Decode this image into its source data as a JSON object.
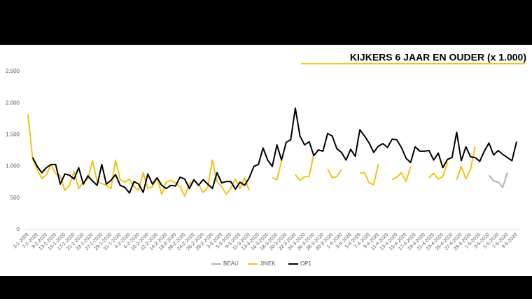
{
  "chart_data": {
    "type": "line",
    "title": "KIJKERS 6 JAAR EN OUDER  (x 1.000)",
    "categories": [
      "3-1-2020",
      null,
      "7-1-2020",
      null,
      "9-1-2020",
      null,
      "13-1-2020",
      null,
      "15-1-2020",
      null,
      "17-1-2020",
      null,
      "21-1-2020",
      null,
      "23-1-2020",
      null,
      "27-1-2020",
      null,
      "29-1-2020",
      null,
      "31-1-2020",
      null,
      "4-2-2020",
      null,
      "6-2-2020",
      null,
      "10-2-2020",
      null,
      "12-2-2020",
      null,
      "14-2-2020",
      null,
      "18-2-2020",
      null,
      "20-2-2020",
      null,
      "24-2-2020",
      null,
      "26-2-2020",
      null,
      "28-2-2020",
      null,
      "3-3-2020",
      null,
      "5-3-2020",
      null,
      "9-3-2020",
      null,
      "11-3-2020",
      null,
      "13-3-2020",
      null,
      "16-3-2020",
      null,
      "18-3-2020",
      null,
      "20-3-2020",
      null,
      "22-3-2020",
      null,
      "24-3-2020",
      null,
      "26-3-2020",
      null,
      "28-3-2020",
      null,
      "30-3-2020",
      null,
      "1-4-2020",
      null,
      "3-4-2020",
      null,
      "5-4-2020",
      null,
      "7-4-2020",
      null,
      "9-4-2020",
      null,
      "11-4-2020",
      null,
      "13-4-2020",
      null,
      "15-4-2020",
      null,
      "17-4-2020",
      null,
      "19-4-2020",
      null,
      "21-4-2020",
      null,
      "23-4-2020",
      null,
      "25-4-2020",
      null,
      "27-4-2020",
      null,
      "29-4-2020",
      null,
      "1-5-2020",
      null,
      "3-5-2020",
      null,
      "5-5-2020",
      null,
      "7-5-2020",
      null,
      "9-5-2020"
    ],
    "series": [
      {
        "name": "BEAU",
        "color": "#b0b0b0",
        "values": [
          null,
          null,
          null,
          null,
          null,
          null,
          null,
          null,
          null,
          null,
          null,
          null,
          null,
          null,
          null,
          null,
          null,
          null,
          null,
          null,
          null,
          null,
          null,
          null,
          null,
          null,
          null,
          null,
          null,
          null,
          null,
          null,
          null,
          null,
          null,
          null,
          null,
          null,
          null,
          null,
          null,
          null,
          null,
          null,
          null,
          null,
          null,
          null,
          null,
          null,
          null,
          null,
          null,
          null,
          null,
          null,
          null,
          null,
          null,
          null,
          null,
          null,
          null,
          null,
          null,
          null,
          null,
          null,
          null,
          null,
          null,
          null,
          null,
          null,
          null,
          null,
          null,
          null,
          null,
          null,
          null,
          null,
          null,
          null,
          null,
          null,
          null,
          null,
          null,
          null,
          null,
          null,
          null,
          null,
          null,
          null,
          null,
          null,
          null,
          null,
          860,
          770,
          750,
          670,
          900,
          null,
          null
        ]
      },
      {
        "name": "JINEK",
        "color": "#f2c314",
        "values": [
          1820,
          1120,
          950,
          810,
          870,
          1030,
          880,
          850,
          620,
          700,
          920,
          650,
          750,
          800,
          1090,
          760,
          730,
          700,
          650,
          1100,
          790,
          750,
          800,
          680,
          620,
          900,
          650,
          680,
          820,
          560,
          750,
          780,
          740,
          680,
          530,
          720,
          780,
          720,
          590,
          670,
          1100,
          760,
          680,
          560,
          650,
          800,
          650,
          820,
          620,
          null,
          null,
          null,
          null,
          820,
          790,
          1090,
          null,
          null,
          870,
          780,
          840,
          840,
          1200,
          null,
          null,
          960,
          820,
          840,
          950,
          null,
          null,
          null,
          890,
          900,
          740,
          710,
          1040,
          null,
          null,
          790,
          830,
          900,
          760,
          1000,
          null,
          null,
          null,
          820,
          890,
          800,
          840,
          1060,
          null,
          790,
          1000,
          800,
          950,
          1310,
          null,
          null,
          null,
          null,
          null,
          null,
          null,
          null,
          null
        ]
      },
      {
        "name": "OP1",
        "color": "#000000",
        "values": [
          null,
          1140,
          1000,
          900,
          980,
          1030,
          1030,
          720,
          880,
          860,
          800,
          980,
          720,
          850,
          770,
          700,
          1030,
          720,
          780,
          870,
          700,
          670,
          580,
          760,
          720,
          590,
          880,
          720,
          820,
          700,
          650,
          700,
          690,
          830,
          800,
          650,
          790,
          700,
          790,
          720,
          650,
          900,
          740,
          760,
          760,
          640,
          750,
          700,
          820,
          1000,
          1030,
          1290,
          1100,
          1000,
          1340,
          1100,
          1380,
          1420,
          1920,
          1480,
          1340,
          1390,
          1170,
          1260,
          1240,
          1520,
          1480,
          1280,
          1220,
          1100,
          1270,
          1160,
          1580,
          1480,
          1370,
          1220,
          1320,
          1360,
          1300,
          1430,
          1420,
          1300,
          1130,
          1060,
          1310,
          1240,
          1240,
          1250,
          1100,
          1210,
          980,
          1110,
          1140,
          1540,
          1090,
          1310,
          1150,
          1140,
          1080,
          1240,
          1370,
          1180,
          1250,
          1190,
          1140,
          1090,
          1390
        ]
      }
    ],
    "ylim": [
      0,
      2500
    ],
    "yticks": [
      0,
      500,
      {
        "value": 1000,
        "label": "1.000"
      },
      {
        "value": 1500,
        "label": "1.500"
      },
      {
        "value": 2000,
        "label": "2.000"
      },
      {
        "value": 2500,
        "label": "2.500"
      }
    ],
    "grid": false,
    "legend": "bottom"
  }
}
